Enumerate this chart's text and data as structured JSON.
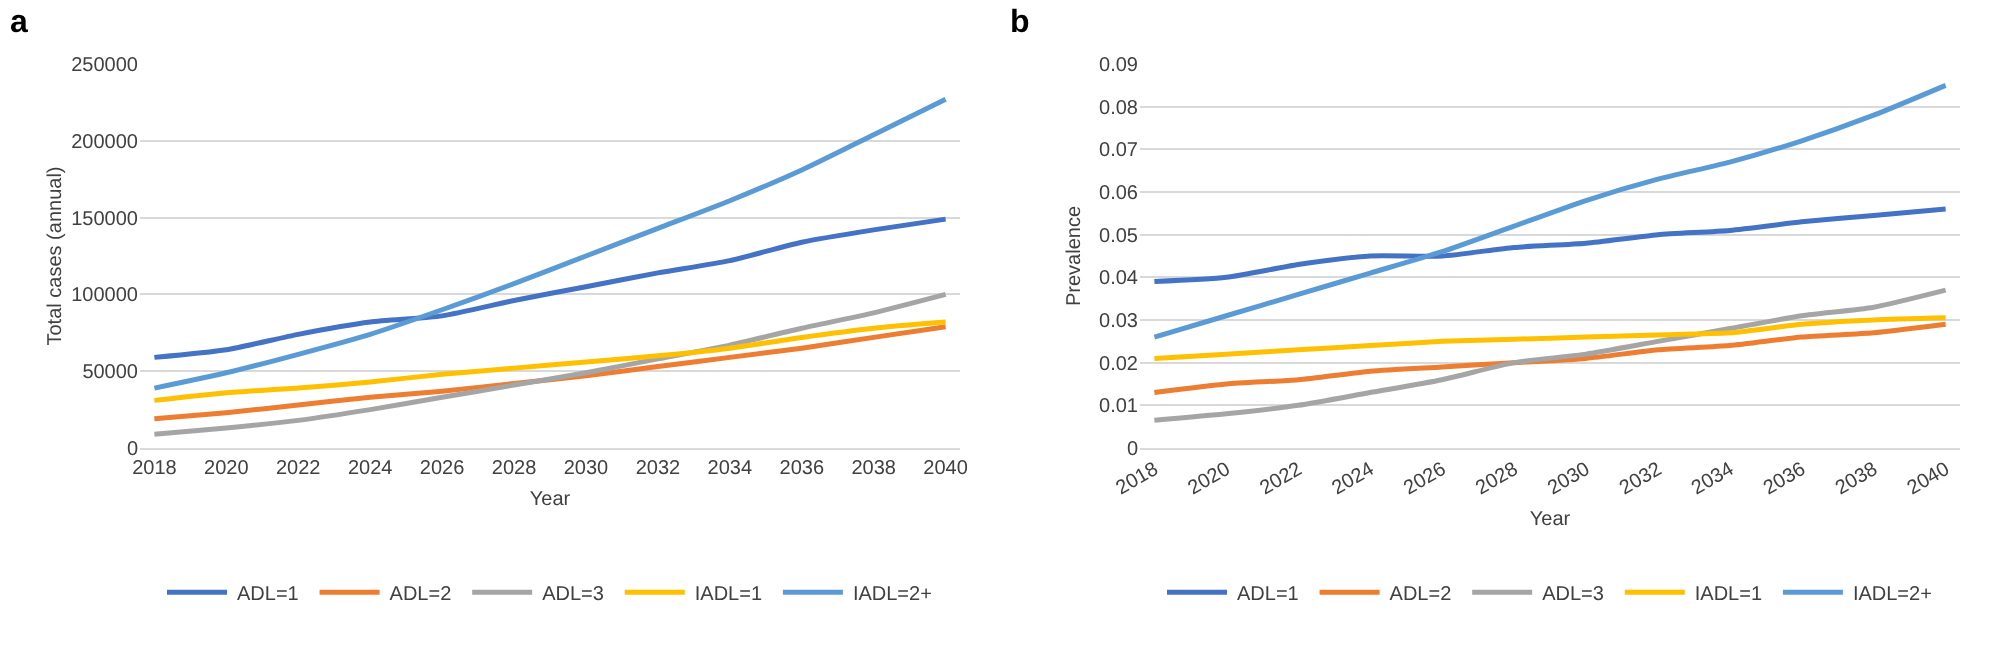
{
  "chart_data": [
    {
      "type": "line",
      "title": "a",
      "xlabel": "Year",
      "ylabel": "Total cases (annual)",
      "categories": [
        "2018",
        "2020",
        "2022",
        "2024",
        "2026",
        "2028",
        "2030",
        "2032",
        "2034",
        "2036",
        "2038",
        "2040"
      ],
      "ylim": [
        0,
        250000
      ],
      "yticks": [
        0,
        50000,
        100000,
        150000,
        200000,
        250000
      ],
      "grid": "y",
      "legend": "bottom",
      "marker": "none",
      "line_style": "solid",
      "series": [
        {
          "name": "ADL=1",
          "color": "#4472c4",
          "values": [
            59000,
            64000,
            74000,
            82000,
            86000,
            96000,
            105000,
            114000,
            122000,
            134000,
            142000,
            149000
          ]
        },
        {
          "name": "ADL=2",
          "color": "#ed7d31",
          "values": [
            19000,
            23000,
            28000,
            33000,
            37000,
            42000,
            47000,
            53000,
            59000,
            65000,
            72000,
            79000
          ]
        },
        {
          "name": "ADL=3",
          "color": "#a5a5a5",
          "values": [
            9000,
            13000,
            18000,
            25000,
            33000,
            41000,
            49000,
            58000,
            67000,
            78000,
            88000,
            100000
          ]
        },
        {
          "name": "IADL=1",
          "color": "#ffc000",
          "values": [
            31000,
            36000,
            39000,
            43000,
            48000,
            52000,
            56000,
            60000,
            65000,
            72000,
            78000,
            82000
          ]
        },
        {
          "name": "IADL=2+",
          "color": "#5b9bd5",
          "values": [
            39000,
            49000,
            61000,
            74000,
            90000,
            107000,
            125000,
            143000,
            161000,
            181000,
            204000,
            227000
          ]
        }
      ]
    },
    {
      "type": "line",
      "title": "b",
      "xlabel": "Year",
      "ylabel": "Prevalence",
      "categories": [
        "2018",
        "2020",
        "2022",
        "2024",
        "2026",
        "2028",
        "2030",
        "2032",
        "2034",
        "2036",
        "2038",
        "2040"
      ],
      "ylim": [
        0,
        0.09
      ],
      "yticks": [
        0,
        0.01,
        0.02,
        0.03,
        0.04,
        0.05,
        0.06,
        0.07,
        0.08,
        0.09
      ],
      "grid": "y",
      "legend": "bottom",
      "marker": "none",
      "line_style": "solid",
      "series": [
        {
          "name": "ADL=1",
          "color": "#4472c4",
          "values": [
            0.039,
            0.04,
            0.043,
            0.045,
            0.045,
            0.047,
            0.048,
            0.05,
            0.051,
            0.053,
            0.0545,
            0.056
          ]
        },
        {
          "name": "ADL=2",
          "color": "#ed7d31",
          "values": [
            0.013,
            0.015,
            0.016,
            0.018,
            0.019,
            0.02,
            0.021,
            0.023,
            0.024,
            0.026,
            0.027,
            0.029
          ]
        },
        {
          "name": "ADL=3",
          "color": "#a5a5a5",
          "values": [
            0.0065,
            0.008,
            0.01,
            0.013,
            0.016,
            0.02,
            0.022,
            0.025,
            0.028,
            0.031,
            0.033,
            0.037
          ]
        },
        {
          "name": "IADL=1",
          "color": "#ffc000",
          "values": [
            0.021,
            0.022,
            0.023,
            0.024,
            0.025,
            0.0255,
            0.026,
            0.0265,
            0.027,
            0.029,
            0.03,
            0.0305
          ]
        },
        {
          "name": "IADL=2+",
          "color": "#5b9bd5",
          "values": [
            0.026,
            0.031,
            0.036,
            0.041,
            0.046,
            0.052,
            0.058,
            0.063,
            0.067,
            0.072,
            0.078,
            0.085
          ]
        }
      ]
    }
  ]
}
